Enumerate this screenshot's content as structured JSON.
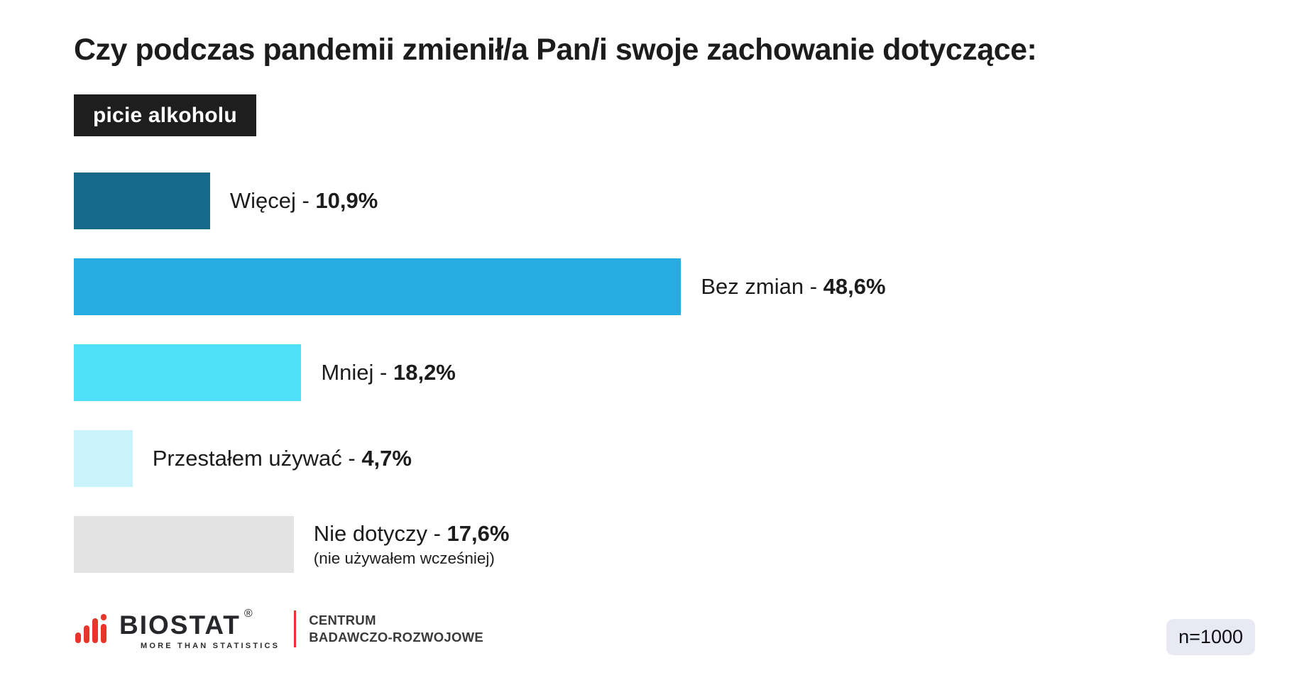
{
  "chart_data": {
    "type": "bar",
    "orientation": "horizontal",
    "title": "Czy podczas pandemii zmienił/a Pan/i swoje zachowanie dotyczące:",
    "subtitle": "picie alkoholu",
    "unit": "%",
    "categories": [
      "Więcej",
      "Bez zmian",
      "Mniej",
      "Przestałem używać",
      "Nie dotyczy"
    ],
    "values": [
      10.9,
      48.6,
      18.2,
      4.7,
      17.6
    ],
    "display_values": [
      "10,9%",
      "48,6%",
      "18,2%",
      "4,7%",
      "17,6%"
    ],
    "notes": [
      "",
      "",
      "",
      "",
      "(nie używałem wcześniej)"
    ],
    "bar_colors": [
      "#156a8c",
      "#27ace2",
      "#4fe0f7",
      "#c9f2fa",
      "#e3e3e3"
    ],
    "value_separator": " - ",
    "value_label_position": "right-of-bar",
    "xlim": [
      0,
      50
    ],
    "grid": false,
    "sample_size": "n=1000"
  },
  "header": {
    "tag_background": "#1e1e1e",
    "tag_text_color": "#ffffff"
  },
  "footer": {
    "logo": {
      "brand": "BIOSTAT",
      "registered_mark": "®",
      "tagline": "MORE THAN STATISTICS",
      "division_line1": "CENTRUM",
      "division_line2": "BADAWCZO-ROZWOJOWE",
      "accent_color": "#e8352b"
    },
    "sample_badge_background": "#e9e9f4"
  }
}
